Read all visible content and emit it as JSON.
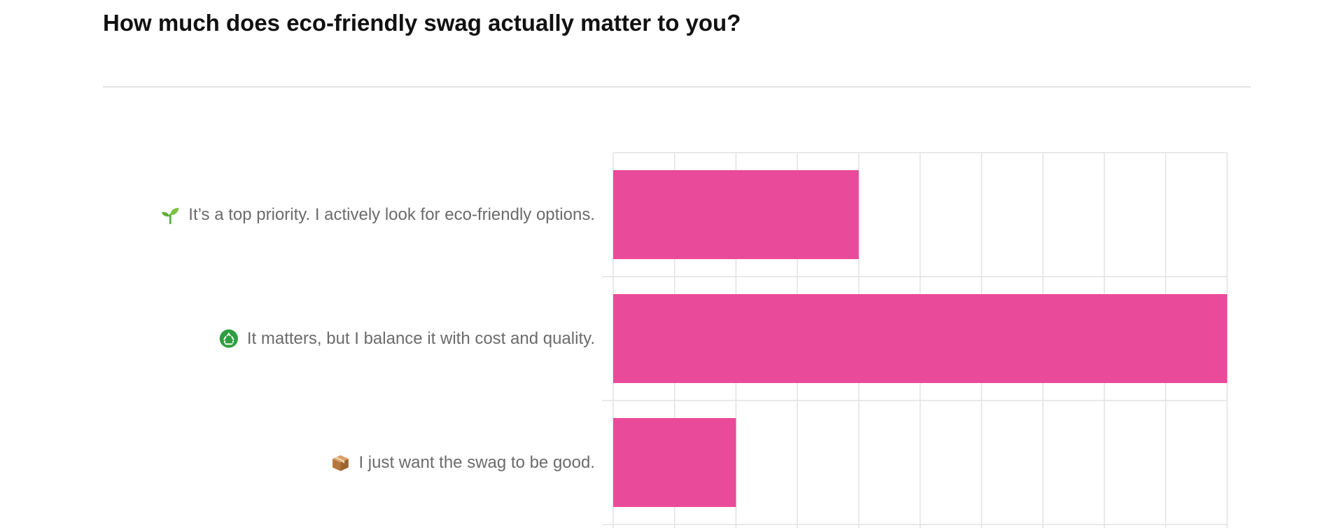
{
  "question": {
    "title": "How much does eco-friendly swag actually matter to you?"
  },
  "chart_data": {
    "type": "bar",
    "orientation": "horizontal",
    "categories": [
      "It’s a top priority. I actively look for eco-friendly options.",
      "It matters, but I balance it with cost and quality.",
      "I just want the swag to be good."
    ],
    "category_icons": [
      "seedling-icon",
      "recycle-icon",
      "package-icon"
    ],
    "values": [
      4,
      10,
      2
    ],
    "xlim": [
      0,
      10
    ],
    "grid": true,
    "bar_color": "#ea4a9a",
    "grid_color": "#e2e2e2"
  }
}
